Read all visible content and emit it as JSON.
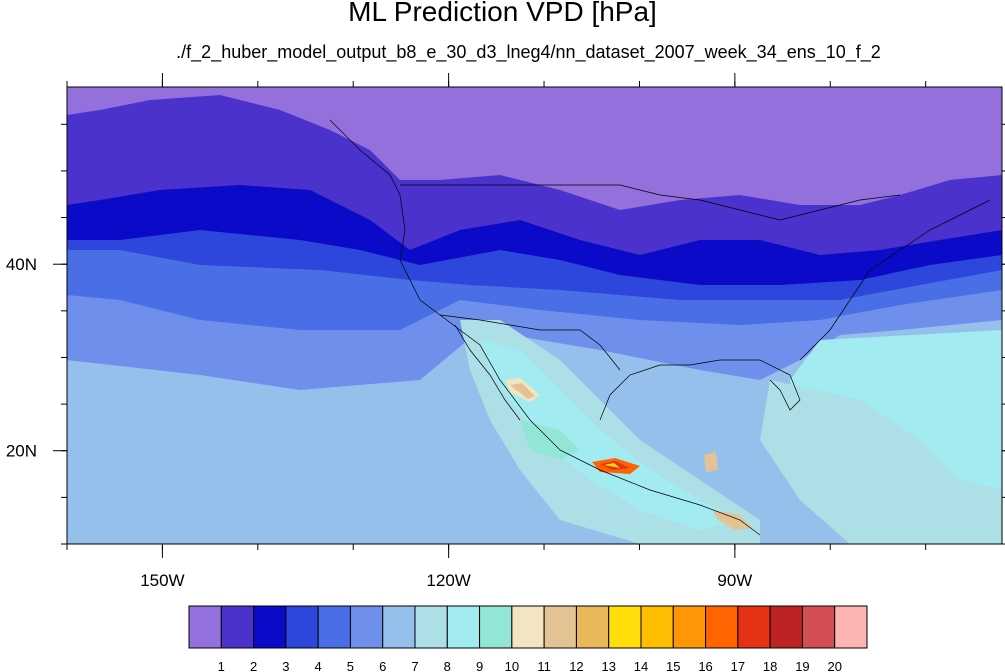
{
  "title": "ML Prediction VPD [hPa]",
  "subtitle": "./f_2_huber_model_output_b8_e_30_d3_lneg4/nn_dataset_2007_week_34_ens_10_f_2",
  "map": {
    "lon_range": [
      -160,
      -62
    ],
    "lat_range": [
      10,
      59
    ],
    "lon_ticks": [
      {
        "value": -150,
        "label": "150W"
      },
      {
        "value": -120,
        "label": "120W"
      },
      {
        "value": -90,
        "label": "90W"
      }
    ],
    "lat_ticks": [
      {
        "value": 40,
        "label": "40N"
      },
      {
        "value": 20,
        "label": "20N"
      }
    ]
  },
  "colorbar": {
    "levels": [
      "1",
      "2",
      "3",
      "4",
      "5",
      "6",
      "7",
      "8",
      "9",
      "10",
      "11",
      "12",
      "13",
      "14",
      "15",
      "16",
      "17",
      "18",
      "19",
      "20"
    ],
    "colors": [
      "#9370db",
      "#4b32cd",
      "#0a0ac8",
      "#2d46dc",
      "#4a6ee6",
      "#6e90ec",
      "#94c0eb",
      "#addfe7",
      "#a2ebf0",
      "#92e6d6",
      "#f3e5c2",
      "#e3c393",
      "#e8b859",
      "#ffde0a",
      "#ffbe00",
      "#ff9605",
      "#ff6400",
      "#e63214",
      "#be2324",
      "#d24e52",
      "#ffb4b4"
    ]
  }
}
